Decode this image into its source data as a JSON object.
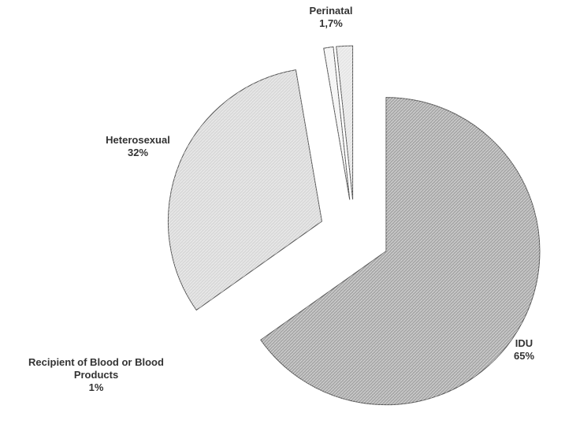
{
  "chart_data": {
    "type": "pie",
    "categories": [
      "IDU",
      "Heterosexual",
      "Recipient of Blood or Blood Products",
      "Perinatal"
    ],
    "values": [
      65,
      32,
      1,
      1.7
    ],
    "value_labels": [
      "65%",
      "32%",
      "1%",
      "1,7%"
    ],
    "colors": [
      "#a9a9a9",
      "#d9d9d9",
      "#f4f4f4",
      "#e6e6e6"
    ]
  }
}
